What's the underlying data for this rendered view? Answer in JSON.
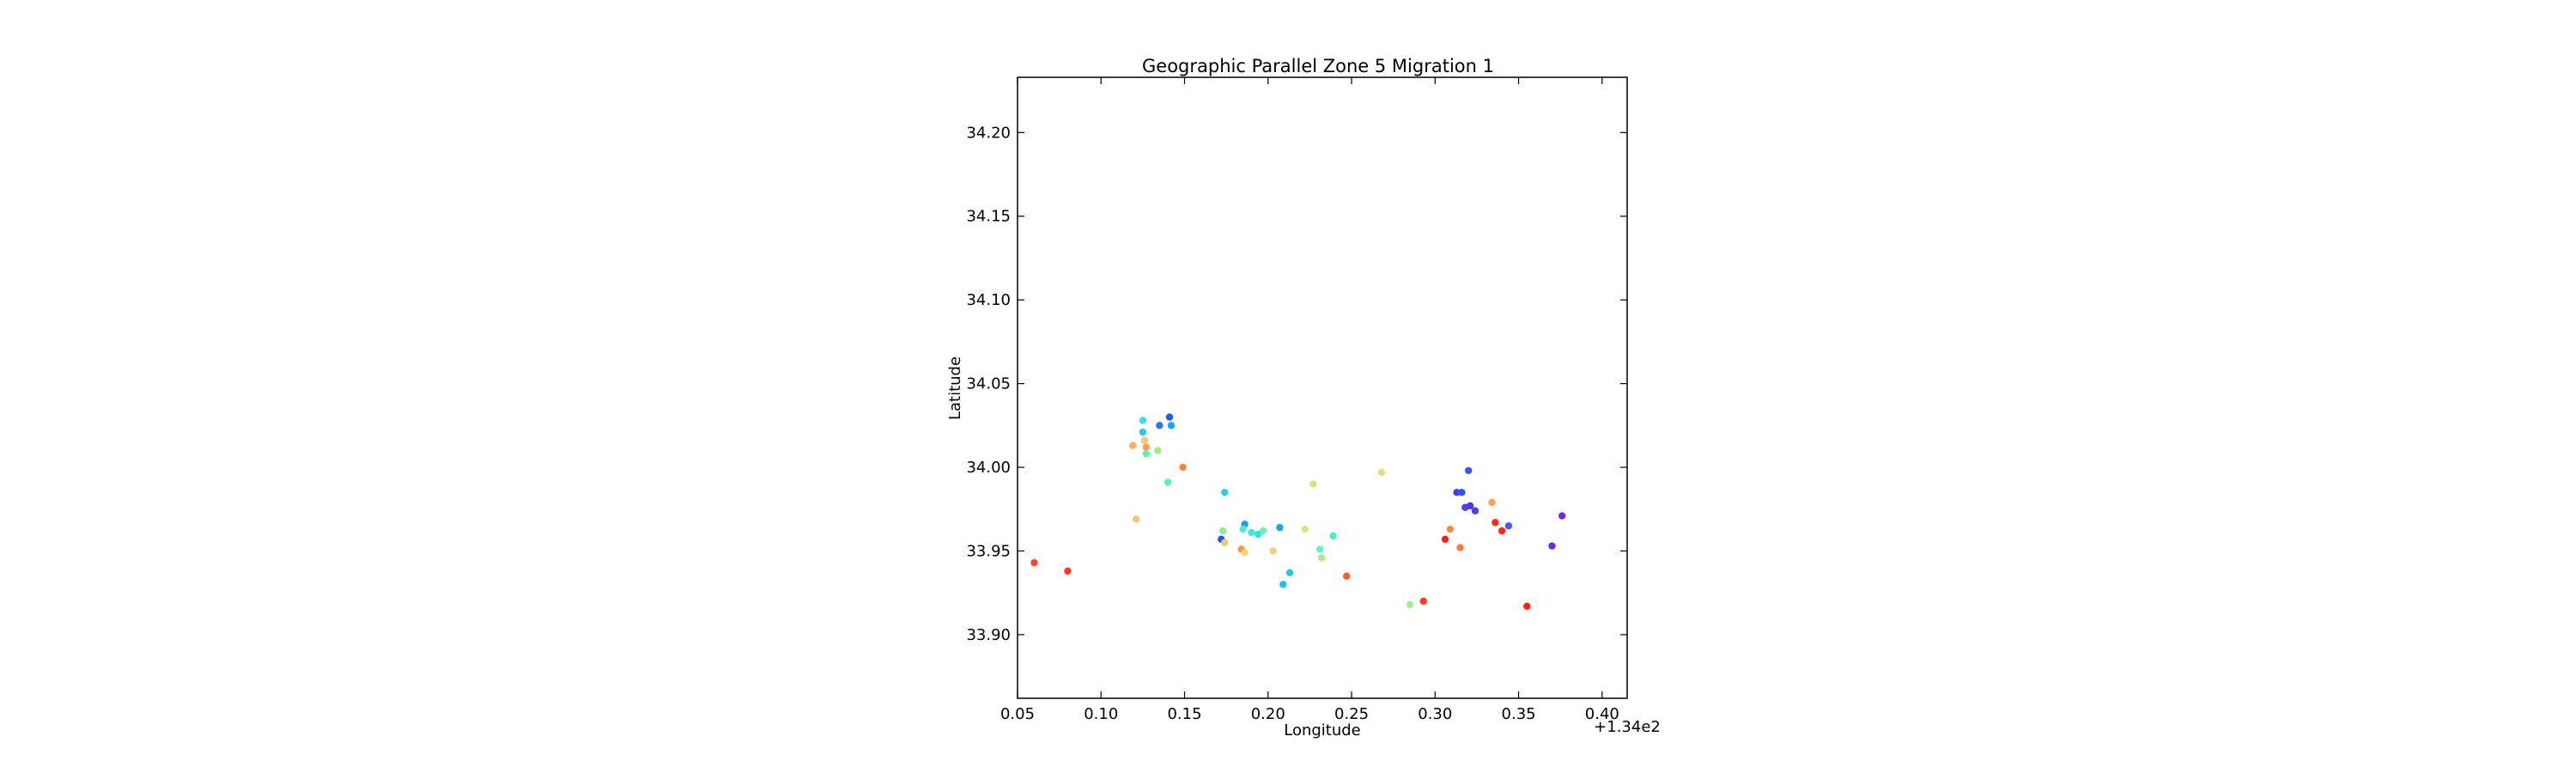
{
  "chart_data": {
    "type": "scatter",
    "title": "Geographic Parallel Zone 5 Migration 1",
    "xlabel": "Longitude",
    "ylabel": "Latitude",
    "x_offset_label": "+1.34e2",
    "xlim": [
      134.05,
      134.415
    ],
    "ylim": [
      33.862,
      34.233
    ],
    "x_ticks": [
      134.05,
      134.1,
      134.15,
      134.2,
      134.25,
      134.3,
      134.35,
      134.4
    ],
    "x_tick_labels": [
      "0.05",
      "0.10",
      "0.15",
      "0.20",
      "0.25",
      "0.30",
      "0.35",
      "0.40"
    ],
    "y_ticks": [
      33.9,
      33.95,
      34.0,
      34.05,
      34.1,
      34.15,
      34.2
    ],
    "y_tick_labels": [
      "33.90",
      "33.95",
      "34.00",
      "34.05",
      "34.10",
      "34.15",
      "34.20"
    ],
    "grid": false,
    "points": [
      {
        "x": 134.06,
        "y": 33.943,
        "color": "#ff4a2a"
      },
      {
        "x": 134.08,
        "y": 33.938,
        "color": "#ff3a1e"
      },
      {
        "x": 134.119,
        "y": 34.013,
        "color": "#ffb060"
      },
      {
        "x": 134.121,
        "y": 33.969,
        "color": "#f5c870"
      },
      {
        "x": 134.125,
        "y": 34.028,
        "color": "#3ae0e0"
      },
      {
        "x": 134.125,
        "y": 34.021,
        "color": "#30c8e8"
      },
      {
        "x": 134.126,
        "y": 34.016,
        "color": "#f7c870"
      },
      {
        "x": 134.127,
        "y": 34.012,
        "color": "#ffa050"
      },
      {
        "x": 134.127,
        "y": 34.008,
        "color": "#60f0b0"
      },
      {
        "x": 134.134,
        "y": 34.01,
        "color": "#a0f080"
      },
      {
        "x": 134.135,
        "y": 34.025,
        "color": "#2878f0"
      },
      {
        "x": 134.141,
        "y": 34.03,
        "color": "#2060f0"
      },
      {
        "x": 134.142,
        "y": 34.025,
        "color": "#18a8e8"
      },
      {
        "x": 134.14,
        "y": 33.991,
        "color": "#50f0c8"
      },
      {
        "x": 134.149,
        "y": 34.0,
        "color": "#ff8040"
      },
      {
        "x": 134.172,
        "y": 33.957,
        "color": "#1858f0"
      },
      {
        "x": 134.173,
        "y": 33.962,
        "color": "#90f090"
      },
      {
        "x": 134.174,
        "y": 33.985,
        "color": "#28d0e0"
      },
      {
        "x": 134.174,
        "y": 33.955,
        "color": "#f0c870"
      },
      {
        "x": 134.184,
        "y": 33.951,
        "color": "#ff9048"
      },
      {
        "x": 134.186,
        "y": 33.966,
        "color": "#18a0e8"
      },
      {
        "x": 134.186,
        "y": 33.949,
        "color": "#f0d878"
      },
      {
        "x": 134.185,
        "y": 33.963,
        "color": "#50e8d0"
      },
      {
        "x": 134.19,
        "y": 33.961,
        "color": "#40e8d8"
      },
      {
        "x": 134.194,
        "y": 33.96,
        "color": "#38e0e0"
      },
      {
        "x": 134.197,
        "y": 33.962,
        "color": "#68f0c0"
      },
      {
        "x": 134.203,
        "y": 33.95,
        "color": "#f0d080"
      },
      {
        "x": 134.207,
        "y": 33.964,
        "color": "#18a8e8"
      },
      {
        "x": 134.209,
        "y": 33.93,
        "color": "#20c0e8"
      },
      {
        "x": 134.213,
        "y": 33.937,
        "color": "#28c8e0"
      },
      {
        "x": 134.222,
        "y": 33.963,
        "color": "#e0e080"
      },
      {
        "x": 134.227,
        "y": 33.99,
        "color": "#d8e080"
      },
      {
        "x": 134.231,
        "y": 33.951,
        "color": "#68f0c8"
      },
      {
        "x": 134.232,
        "y": 33.946,
        "color": "#a8f088"
      },
      {
        "x": 134.239,
        "y": 33.959,
        "color": "#50e8d0"
      },
      {
        "x": 134.247,
        "y": 33.935,
        "color": "#ff6030"
      },
      {
        "x": 134.268,
        "y": 33.997,
        "color": "#e0e080"
      },
      {
        "x": 134.285,
        "y": 33.918,
        "color": "#a0f090"
      },
      {
        "x": 134.293,
        "y": 33.92,
        "color": "#ff3a20"
      },
      {
        "x": 134.306,
        "y": 33.957,
        "color": "#ff2010"
      },
      {
        "x": 134.309,
        "y": 33.963,
        "color": "#ff8a40"
      },
      {
        "x": 134.313,
        "y": 33.985,
        "color": "#4040f0"
      },
      {
        "x": 134.316,
        "y": 33.985,
        "color": "#3050f0"
      },
      {
        "x": 134.315,
        "y": 33.952,
        "color": "#ff7a38"
      },
      {
        "x": 134.318,
        "y": 33.976,
        "color": "#4a40f0"
      },
      {
        "x": 134.32,
        "y": 33.998,
        "color": "#3a58f0"
      },
      {
        "x": 134.321,
        "y": 33.977,
        "color": "#5a30f0"
      },
      {
        "x": 134.324,
        "y": 33.974,
        "color": "#4048e8"
      },
      {
        "x": 134.334,
        "y": 33.979,
        "color": "#ffa058"
      },
      {
        "x": 134.336,
        "y": 33.967,
        "color": "#ff2a18"
      },
      {
        "x": 134.34,
        "y": 33.962,
        "color": "#ff2a18"
      },
      {
        "x": 134.344,
        "y": 33.965,
        "color": "#4858f0"
      },
      {
        "x": 134.355,
        "y": 33.917,
        "color": "#ff2010"
      },
      {
        "x": 134.37,
        "y": 33.953,
        "color": "#6a2af0"
      },
      {
        "x": 134.376,
        "y": 33.971,
        "color": "#7a20f0"
      }
    ]
  }
}
